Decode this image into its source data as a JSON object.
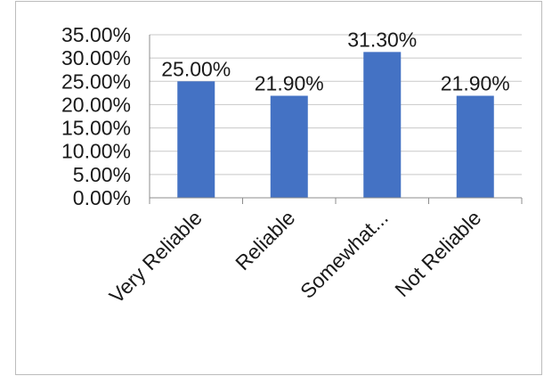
{
  "chart_data": {
    "type": "bar",
    "categories": [
      "Very Reliable",
      "Reliable",
      "Somewhat...",
      "Not Reliable"
    ],
    "values": [
      25.0,
      21.9,
      31.3,
      21.9
    ],
    "data_labels": [
      "25.00%",
      "21.90%",
      "31.30%",
      "21.90%"
    ],
    "y_ticks": [
      "0.00%",
      "5.00%",
      "10.00%",
      "15.00%",
      "20.00%",
      "25.00%",
      "30.00%",
      "35.00%"
    ],
    "ylim": [
      0,
      35
    ],
    "grid": true,
    "bar_color": "#4472C4",
    "title": "",
    "xlabel": "",
    "ylabel": ""
  }
}
